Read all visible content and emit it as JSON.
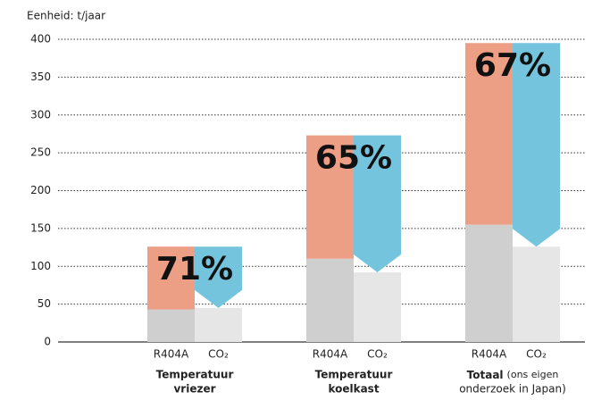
{
  "chart_data": {
    "type": "bar",
    "unit_label": "Eenheid: t/jaar",
    "ylim": [
      0,
      400
    ],
    "yticks": [
      0,
      50,
      100,
      150,
      200,
      250,
      300,
      350,
      400
    ],
    "grid": true,
    "categories": [
      [
        "Temperatuur",
        "vriezer"
      ],
      [
        "Temperatuur",
        "koelkast"
      ],
      [
        "Totaal"
      ]
    ],
    "notes": [
      "(ons eigen",
      "onderzoek in Japan)"
    ],
    "bar_labels": [
      "R404A",
      "CO₂"
    ],
    "series": [
      {
        "bar": 0,
        "color": "#cfcfcf",
        "values": [
          43,
          110,
          155
        ]
      },
      {
        "bar": 0,
        "color": "#ec9f85",
        "values": [
          83,
          163,
          240
        ]
      },
      {
        "bar": 1,
        "color": "#e6e6e6",
        "values": [
          45,
          92,
          126
        ]
      },
      {
        "bar": 1,
        "color": "#74c4dd",
        "values": [
          81,
          181,
          269
        ]
      }
    ],
    "reduction": {
      "values": [
        71,
        65,
        67
      ],
      "value_labels": [
        "71%",
        "65%",
        "67%"
      ]
    }
  }
}
